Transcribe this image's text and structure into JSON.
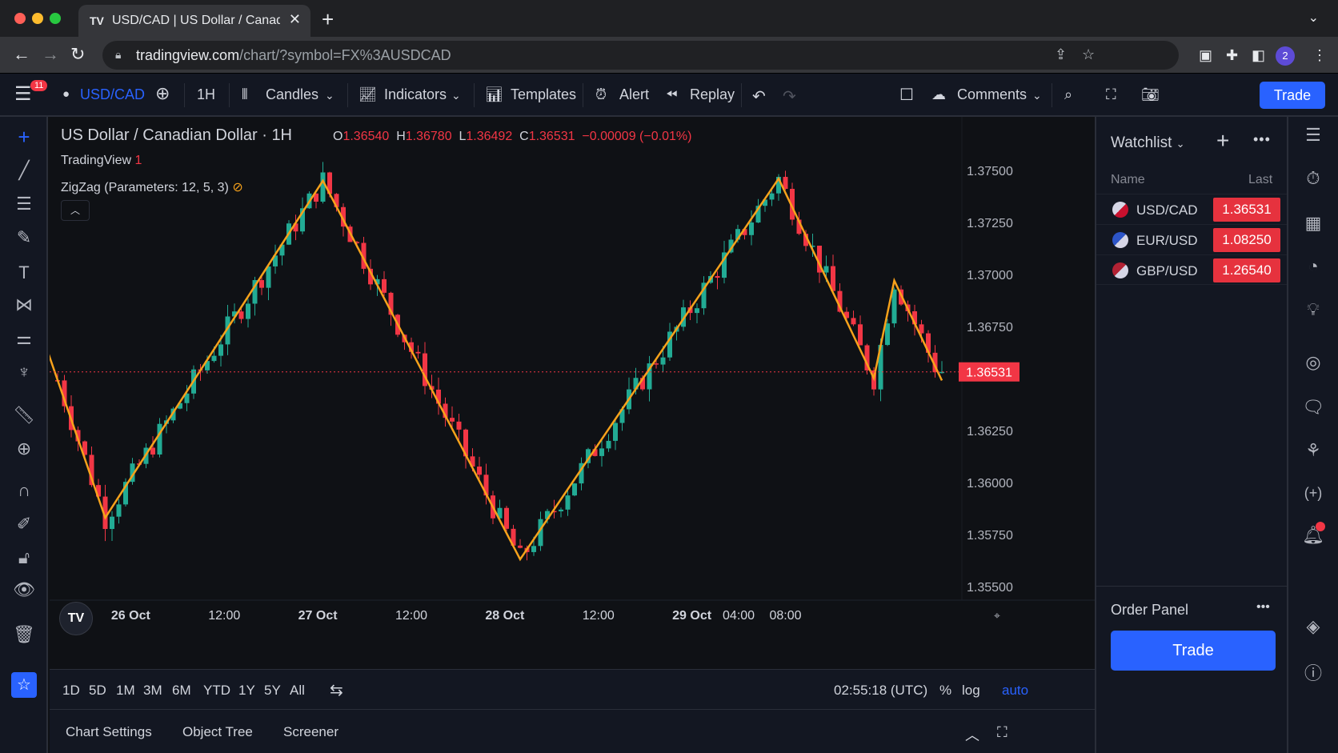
{
  "browser": {
    "tab_title": "USD/CAD | US Dollar / Canad",
    "tab_logo": "TV",
    "url_host": "tradingview.com",
    "url_path": "/chart/?symbol=FX%3AUSDCAD",
    "profile_number": "2"
  },
  "toolbar": {
    "menu_badge": "11",
    "symbol": "USD/CAD",
    "interval": "1H",
    "chart_type": "Candles",
    "indicators": "Indicators",
    "templates": "Templates",
    "alert": "Alert",
    "replay": "Replay",
    "comments": "Comments",
    "trade": "Trade"
  },
  "legend": {
    "title": "US Dollar / Canadian Dollar · 1H",
    "open_label": "O",
    "open": "1.36540",
    "high_label": "H",
    "high": "1.36780",
    "low_label": "L",
    "low": "1.36492",
    "close_label": "C",
    "close": "1.36531",
    "change": "−0.00009 (−0.01%)",
    "source": "TradingView",
    "source_count": "1",
    "indicator": "ZigZag (Parameters: 12, 5, 3)"
  },
  "chart_data": {
    "type": "candlestick",
    "current_price_label": "1.36531",
    "current_price": 1.36531,
    "y_ticks": [
      "1.37500",
      "1.37250",
      "1.37000",
      "1.36750",
      "1.36500",
      "1.36250",
      "1.36000",
      "1.35750",
      "1.35500"
    ],
    "y_tick_values": [
      1.375,
      1.3725,
      1.37,
      1.3675,
      1.365,
      1.3625,
      1.36,
      1.3575,
      1.355
    ],
    "ylim": [
      1.3548,
      1.3758
    ],
    "x_ticks": [
      "26 Oct",
      "12:00",
      "27 Oct",
      "12:00",
      "28 Oct",
      "12:00",
      "29 Oct",
      "04:00",
      "08:00"
    ],
    "x_tick_bold": [
      true,
      false,
      true,
      false,
      true,
      false,
      true,
      false,
      false
    ],
    "x_tick_index": [
      10,
      20,
      30,
      40,
      50,
      60,
      70,
      75,
      80
    ],
    "zigzag": [
      {
        "i": -2,
        "p": 1.3668
      },
      {
        "i": 7,
        "p": 1.3583
      },
      {
        "i": 39,
        "p": 1.3745
      },
      {
        "i": 68,
        "p": 1.3563
      },
      {
        "i": 106,
        "p": 1.3746
      },
      {
        "i": 120,
        "p": 1.365
      },
      {
        "i": 123,
        "p": 1.3697
      },
      {
        "i": 130,
        "p": 1.3649
      }
    ]
  },
  "range_bar": {
    "ranges": [
      "1D",
      "5D",
      "1M",
      "3M",
      "6M",
      "YTD",
      "1Y",
      "5Y",
      "All"
    ],
    "time": "02:55:18 (UTC)",
    "percent": "%",
    "log": "log",
    "auto": "auto"
  },
  "bottom_tabs": [
    "Chart Settings",
    "Object Tree",
    "Screener"
  ],
  "watchlist": {
    "title": "Watchlist",
    "col_name": "Name",
    "col_last": "Last",
    "rows": [
      {
        "symbol": "USD/CAD",
        "last": "1.36531"
      },
      {
        "symbol": "EUR/USD",
        "last": "1.08250"
      },
      {
        "symbol": "GBP/USD",
        "last": "1.26540"
      }
    ]
  },
  "order_panel": {
    "title": "Order Panel",
    "trade": "Trade"
  },
  "colors": {
    "up": "#22ab94",
    "down": "#f23645",
    "zigzag": "#f7a21b",
    "accent": "#2962ff"
  }
}
